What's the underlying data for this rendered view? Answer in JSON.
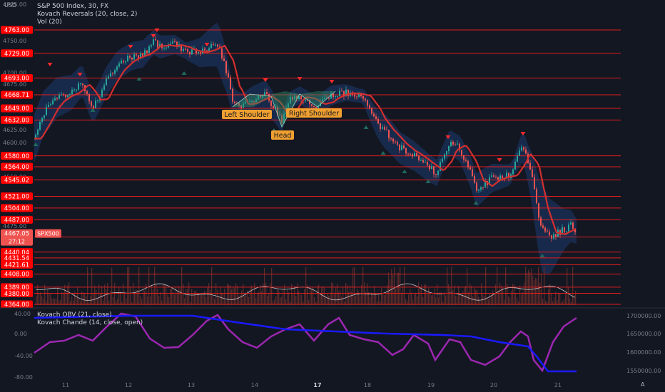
{
  "header": {
    "currency": "USD",
    "symbol_line": "S&P 500 Index, 30, FX",
    "indicator_1": "Kovach Reversals (20, close, 2)",
    "indicator_2": "Vol (20)"
  },
  "lower_pane": {
    "indicator_1": "Kovach OBV (21, close)",
    "indicator_2": "Kovach Chande (14, close, open)"
  },
  "colors": {
    "background": "#131722",
    "level_line": "#e21e1e",
    "level_label_bg": "#ff0000",
    "bull_candle": "#26a69a",
    "bear_candle": "#ef5350",
    "band_fill": "#1e3a6e",
    "moving_average": "#d32f2f",
    "pattern_label": "#f0a030",
    "obv_line": "#1a1aff",
    "chande_line": "#9c27b0",
    "volume_bar": "#5a2a2a",
    "volume_ma": "#c8c8c8"
  },
  "price_axis": {
    "ticks": [
      "4775.00",
      "4750.00",
      "4700.00",
      "4675.00",
      "4625.00",
      "4600.00",
      "4550.00",
      "4475.00"
    ],
    "levels": [
      "4763.00",
      "4729.00",
      "4693.00",
      "4668.71",
      "4649.00",
      "4632.00",
      "4580.00",
      "4564.00",
      "4545.02",
      "4521.00",
      "4504.00",
      "4487.00",
      "4462.00",
      "4440.04",
      "4431.54",
      "4421.61",
      "4408.00",
      "4389.00",
      "4380.00",
      "4364.00"
    ],
    "current_price": "4467.05",
    "countdown": "27:12",
    "symbol_tag": "SPX500"
  },
  "osc_axis": {
    "left_ticks": [
      "40.00",
      "0.00",
      "-40.00",
      "-80.00"
    ],
    "right_ticks": [
      "1700000.00",
      "1650000.00",
      "1600000.00",
      "1550000.00"
    ]
  },
  "time_axis": {
    "ticks": [
      "11",
      "12",
      "13",
      "14",
      "17",
      "18",
      "19",
      "20",
      "21"
    ]
  },
  "annotations": {
    "left_shoulder": "Left Shoulder",
    "head": "Head",
    "right_shoulder": "Right Shoulder"
  },
  "corner": {
    "bottom_right": "A"
  },
  "chart_data": {
    "type": "line",
    "title": "S&P 500 Index, 30, FX",
    "x": [
      "11",
      "12",
      "13",
      "14",
      "17",
      "18",
      "19",
      "20",
      "21"
    ],
    "series": [
      {
        "name": "Kovach Reversals (20, close, 2)",
        "values": [
          4680,
          4742,
          4738,
          4660,
          4668,
          4652,
          4600,
          4565,
          4470
        ]
      }
    ],
    "ylim": [
      4364,
      4780
    ],
    "lower": {
      "obv": [
        1700000,
        1700000,
        1690000,
        1670000,
        1660000,
        1650000,
        1640000,
        1610000,
        1550000
      ],
      "obv_range": [
        1530000,
        1720000
      ],
      "chande": [
        -40,
        40,
        -30,
        30,
        -20,
        -25,
        -60,
        -50,
        30
      ],
      "chande_range": [
        -80,
        40
      ]
    }
  }
}
